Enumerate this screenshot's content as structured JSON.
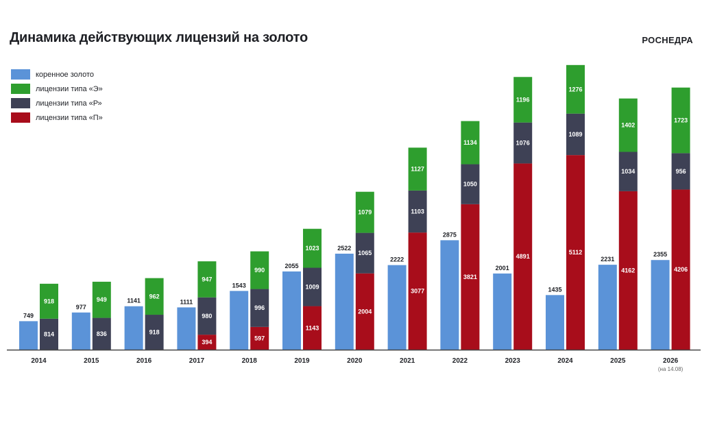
{
  "header": {
    "title": "Динамика действующих лицензий на золото",
    "brand": "РОСНЕДРА"
  },
  "colors": {
    "korennoe": "#5b93d8",
    "e": "#2e9e2e",
    "r": "#3e4155",
    "p": "#a80d1b",
    "axis": "#444444",
    "text": "#1d1f24"
  },
  "chart_data": {
    "type": "bar",
    "categories": [
      "2014",
      "2015",
      "2016",
      "2017",
      "2018",
      "2019",
      "2020",
      "2021",
      "2022",
      "2023",
      "2024",
      "2025",
      "2026"
    ],
    "category_note": {
      "index": 12,
      "text": "(на 14.08)"
    },
    "legend_position": "top-left",
    "grid": false,
    "ylim": [
      0,
      7600
    ],
    "series": [
      {
        "name": "коренное золото",
        "key": "korennoe",
        "stack": "left",
        "values": [
          749,
          977,
          1141,
          1111,
          1543,
          2055,
          2522,
          2222,
          2875,
          2001,
          1435,
          2231,
          2355
        ]
      },
      {
        "name": "лицензии типа «П»",
        "key": "p",
        "stack": "right",
        "values": [
          0,
          0,
          0,
          394,
          597,
          1143,
          2004,
          3077,
          3821,
          4891,
          5112,
          4162,
          4206
        ]
      },
      {
        "name": "лицензии типа «Р»",
        "key": "r",
        "stack": "right",
        "values": [
          814,
          836,
          918,
          980,
          996,
          1009,
          1065,
          1103,
          1050,
          1076,
          1089,
          1034,
          956
        ]
      },
      {
        "name": "лицензии типа «Э»",
        "key": "e",
        "stack": "right",
        "values": [
          918,
          949,
          962,
          947,
          990,
          1023,
          1079,
          1127,
          1134,
          1196,
          1276,
          1402,
          1723
        ]
      }
    ],
    "legend_order": [
      "korennoe",
      "e",
      "r",
      "p"
    ]
  }
}
